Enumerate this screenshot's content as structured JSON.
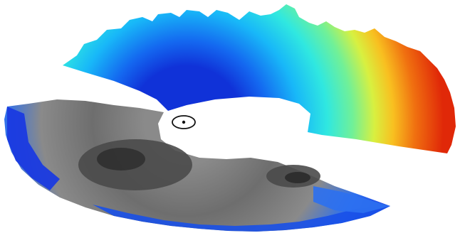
{
  "figure": {
    "colors": {
      "background": "#ffffff",
      "upper_sector_gradient": [
        "#1032d8",
        "#1468f0",
        "#18b8f8",
        "#30e8e0",
        "#70f098",
        "#d8f040",
        "#f8c020",
        "#f07010",
        "#e02808"
      ],
      "lower_sector_gray": [
        "#8a8a8a",
        "#6e6e6e",
        "#4a4a4a",
        "#2e2e2e"
      ],
      "lower_sector_rim_blue": [
        "#1a3ae0",
        "#2c70f0",
        "#1850e8"
      ],
      "marker": "#111111"
    }
  }
}
